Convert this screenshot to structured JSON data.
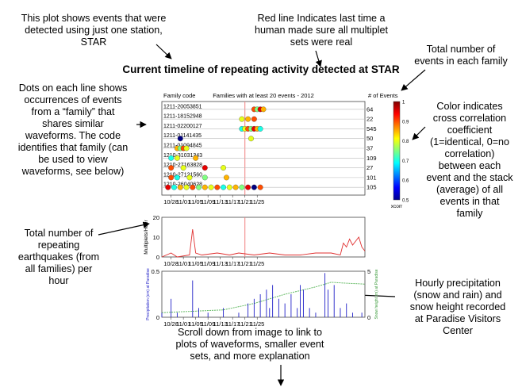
{
  "notes": {
    "star_station": "This plot shows events that were\ndetected  using just one station,\nSTAR",
    "red_line": "Red line Indicates last time a\nhuman made sure all multiplet\nsets were real",
    "total_events": "Total number of\nevents in each family",
    "dots": "Dots on each line shows\noccurrences of events\nfrom a “family” that\nshares similar\nwaveforms. The code\nidentifies that family (can\nbe used to view\nwaveforms, see below)",
    "color": "Color indicates\ncross correlation\ncoefficient\n(1=identical, 0=no\ncorrelation)\nbetween each\nevent and the stack\n(average) of all\nevents in that\nfamily",
    "repeating": "Total number of\nrepeating\nearthquakes (from\nall families) per\nhour",
    "precip": "Hourly precipitation\n(snow and rain) and\nsnow height recorded\nat Paradise Visitors\nCenter",
    "scroll": "Scroll down from image to link to\nplots of waveforms, smaller event\nsets, and more explanation"
  },
  "main_title": "Current timeline of repeating activity detected at STAR",
  "colors": {
    "red_line": "#f08080",
    "rate": "#e03030",
    "precip": "#2020c8",
    "snow": "#66bb66"
  },
  "chart_data": [
    {
      "type": "scatter",
      "title": "Families with at least 20 events - 2012",
      "row_header": "Family code",
      "count_header": "# of Events",
      "x_ticks": [
        "10/28",
        "11/01",
        "11/05",
        "11/09",
        "11/13",
        "11/17",
        "11/21",
        "11/25"
      ],
      "red_line_date": "11/21",
      "colorbar": {
        "label": "xcorr",
        "ticks": [
          "1",
          "0.9",
          "0.8",
          "0.7",
          "0.6",
          "0.5"
        ],
        "range": [
          0.5,
          1
        ]
      },
      "families": [
        {
          "code": "1211-20053851",
          "count": "64",
          "events": [
            [
              "11/24",
              0.9
            ],
            [
              "11/25",
              0.75
            ],
            [
              "11/26",
              0.95
            ],
            [
              "11/27",
              0.85
            ]
          ]
        },
        {
          "code": "1211-18152948",
          "count": "22",
          "events": [
            [
              "11/20",
              0.8
            ],
            [
              "11/22",
              0.85
            ],
            [
              "11/24",
              0.9
            ]
          ]
        },
        {
          "code": "1211-02200127",
          "count": "545",
          "events": [
            [
              "11/20",
              0.7
            ],
            [
              "11/21",
              0.8
            ],
            [
              "11/22",
              0.9
            ],
            [
              "11/23",
              0.75
            ],
            [
              "11/24",
              0.95
            ],
            [
              "11/25",
              0.85
            ],
            [
              "11/26",
              0.7
            ]
          ]
        },
        {
          "code": "1211-01141435",
          "count": "50",
          "events": [
            [
              "10/31",
              0.5
            ],
            [
              "11/23",
              0.8
            ]
          ]
        },
        {
          "code": "1211-01094845",
          "count": "37",
          "events": [
            [
              "10/30",
              0.85
            ],
            [
              "10/31",
              0.75
            ],
            [
              "11/01",
              0.9
            ],
            [
              "11/02",
              0.8
            ]
          ]
        },
        {
          "code": "1210-31031343",
          "count": "109",
          "events": [
            [
              "10/28",
              0.7
            ],
            [
              "10/30",
              0.8
            ],
            [
              "11/05",
              0.85
            ]
          ]
        },
        {
          "code": "1210-27163828",
          "count": "27",
          "events": [
            [
              "10/28",
              0.9
            ],
            [
              "11/01",
              0.8
            ],
            [
              "11/08",
              0.95
            ],
            [
              "11/14",
              0.8
            ]
          ]
        },
        {
          "code": "1210-27121560",
          "count": "101",
          "events": [
            [
              "10/28",
              0.9
            ],
            [
              "10/30",
              0.7
            ],
            [
              "11/03",
              0.8
            ],
            [
              "11/08",
              0.75
            ],
            [
              "11/15",
              0.85
            ]
          ]
        },
        {
          "code": "1210-26040628",
          "count": "105",
          "events": [
            [
              "10/27",
              0.95
            ],
            [
              "10/29",
              0.7
            ],
            [
              "10/31",
              0.85
            ],
            [
              "11/02",
              0.8
            ],
            [
              "11/04",
              0.9
            ],
            [
              "11/06",
              0.75
            ],
            [
              "11/08",
              0.85
            ],
            [
              "11/10",
              0.8
            ],
            [
              "11/12",
              0.9
            ],
            [
              "11/14",
              0.7
            ],
            [
              "11/16",
              0.8
            ],
            [
              "11/18",
              0.85
            ],
            [
              "11/20",
              0.75
            ],
            [
              "11/22",
              0.95
            ],
            [
              "11/24",
              0.5
            ],
            [
              "11/26",
              0.9
            ]
          ]
        }
      ]
    },
    {
      "type": "line",
      "ylabel": "Multiplets/Hour",
      "ylim": [
        0,
        20
      ],
      "y_ticks": [
        "20",
        "10",
        "0"
      ],
      "x_ticks": [
        "10/28",
        "11/01",
        "11/05",
        "11/09",
        "11/13",
        "11/17",
        "11/21",
        "11/25"
      ],
      "red_line_date": "11/21",
      "series": [
        {
          "values": [
            [
              0,
              0
            ],
            [
              3,
              2
            ],
            [
              5,
              0
            ],
            [
              9,
              1
            ],
            [
              10,
              14
            ],
            [
              11,
              2
            ],
            [
              13,
              1
            ],
            [
              18,
              2
            ],
            [
              22,
              1
            ],
            [
              25,
              2
            ],
            [
              30,
              1
            ],
            [
              35,
              2
            ],
            [
              40,
              1
            ],
            [
              45,
              1
            ],
            [
              50,
              2
            ],
            [
              55,
              2
            ],
            [
              58,
              1
            ],
            [
              59,
              7
            ],
            [
              60,
              5
            ],
            [
              61,
              9
            ],
            [
              62,
              6
            ],
            [
              63,
              8
            ],
            [
              64,
              10
            ],
            [
              65,
              5
            ],
            [
              66,
              3
            ]
          ]
        }
      ]
    },
    {
      "type": "line",
      "ylabel": "Precipitation (cm) at Paradise",
      "ylabel_right": "Snow height (m) at Paradise",
      "ylim": [
        0,
        0.5
      ],
      "ylim_right": [
        0,
        5
      ],
      "y_ticks": [
        "0.5",
        "0"
      ],
      "y_ticks_right": [
        "5",
        "0"
      ],
      "x_ticks": [
        "10/28",
        "11/01",
        "11/05",
        "11/09",
        "11/13",
        "11/17",
        "11/21",
        "11/25"
      ],
      "series": [
        {
          "name": "Precipitation",
          "values": [
            [
              0,
              0.05
            ],
            [
              3,
              0.2
            ],
            [
              5,
              0.05
            ],
            [
              10,
              0.4
            ],
            [
              12,
              0.1
            ],
            [
              15,
              0.05
            ],
            [
              20,
              0.1
            ],
            [
              25,
              0.05
            ],
            [
              28,
              0.15
            ],
            [
              30,
              0.2
            ],
            [
              32,
              0.25
            ],
            [
              34,
              0.3
            ],
            [
              35,
              0.1
            ],
            [
              36,
              0.35
            ],
            [
              38,
              0.2
            ],
            [
              40,
              0.15
            ],
            [
              42,
              0.25
            ],
            [
              44,
              0.1
            ],
            [
              45,
              0.35
            ],
            [
              46,
              0.3
            ],
            [
              48,
              0.1
            ],
            [
              50,
              0.05
            ],
            [
              53,
              0.48
            ],
            [
              54,
              0.3
            ],
            [
              56,
              0.35
            ],
            [
              58,
              0.1
            ],
            [
              60,
              0.15
            ],
            [
              62,
              0.05
            ],
            [
              65,
              0.05
            ]
          ]
        },
        {
          "name": "Snow height",
          "values": [
            [
              0,
              0.5
            ],
            [
              20,
              0.8
            ],
            [
              30,
              1.5
            ],
            [
              40,
              2.5
            ],
            [
              50,
              3.3
            ],
            [
              55,
              3.8
            ],
            [
              60,
              3.7
            ],
            [
              66,
              3.6
            ]
          ]
        }
      ]
    }
  ]
}
